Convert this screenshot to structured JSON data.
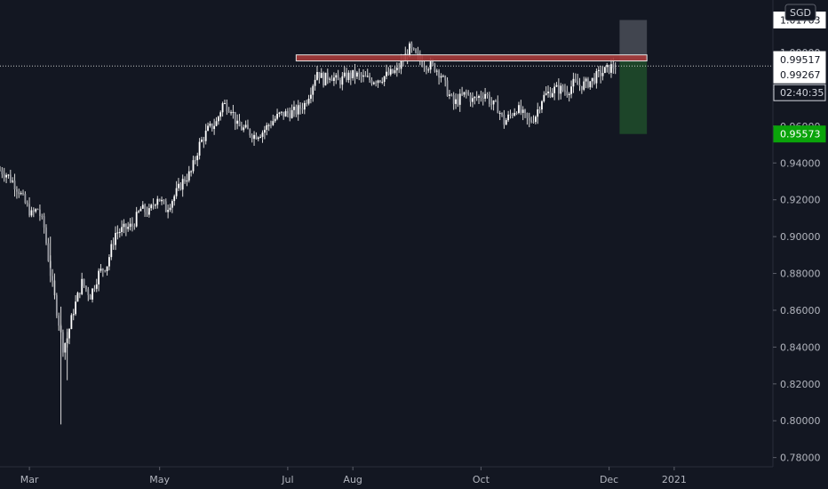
{
  "chart_data": {
    "type": "candlestick",
    "currency": "SGD",
    "ylim": [
      0.775,
      1.0285
    ],
    "y_ticks": [
      "0.78000",
      "0.80000",
      "0.82000",
      "0.84000",
      "0.86000",
      "0.88000",
      "0.90000",
      "0.92000",
      "0.94000",
      "0.96000",
      "0.98000",
      "1.00000"
    ],
    "x_ticks": [
      "Mar",
      "May",
      "Jul",
      "Aug",
      "Oct",
      "Dec",
      "2021"
    ],
    "x_tick_days": [
      59,
      121,
      182,
      213,
      274,
      335,
      366
    ],
    "xlim": [
      45,
      413
    ],
    "grid": false,
    "close_series": [
      [
        45,
        0.936
      ],
      [
        48,
        0.934
      ],
      [
        51,
        0.93
      ],
      [
        54,
        0.925
      ],
      [
        57,
        0.918
      ],
      [
        60,
        0.912
      ],
      [
        63,
        0.915
      ],
      [
        66,
        0.905
      ],
      [
        69,
        0.88
      ],
      [
        72,
        0.86
      ],
      [
        75,
        0.84
      ],
      [
        77,
        0.845
      ],
      [
        80,
        0.86
      ],
      [
        84,
        0.875
      ],
      [
        88,
        0.868
      ],
      [
        92,
        0.88
      ],
      [
        96,
        0.885
      ],
      [
        100,
        0.902
      ],
      [
        104,
        0.904
      ],
      [
        108,
        0.906
      ],
      [
        112,
        0.915
      ],
      [
        116,
        0.913
      ],
      [
        120,
        0.922
      ],
      [
        124,
        0.915
      ],
      [
        128,
        0.922
      ],
      [
        132,
        0.93
      ],
      [
        136,
        0.935
      ],
      [
        140,
        0.95
      ],
      [
        144,
        0.958
      ],
      [
        148,
        0.962
      ],
      [
        151,
        0.972
      ],
      [
        155,
        0.97
      ],
      [
        158,
        0.96
      ],
      [
        162,
        0.958
      ],
      [
        166,
        0.955
      ],
      [
        170,
        0.957
      ],
      [
        174,
        0.962
      ],
      [
        178,
        0.966
      ],
      [
        182,
        0.967
      ],
      [
        186,
        0.968
      ],
      [
        190,
        0.972
      ],
      [
        193,
        0.98
      ],
      [
        196,
        0.99
      ],
      [
        199,
        0.985
      ],
      [
        202,
        0.988
      ],
      [
        206,
        0.984
      ],
      [
        210,
        0.987
      ],
      [
        214,
        0.988
      ],
      [
        218,
        0.986
      ],
      [
        222,
        0.985
      ],
      [
        226,
        0.986
      ],
      [
        230,
        0.988
      ],
      [
        234,
        0.99
      ],
      [
        237,
        0.996
      ],
      [
        240,
        1.002
      ],
      [
        243,
        0.998
      ],
      [
        246,
        0.995
      ],
      [
        249,
        0.993
      ],
      [
        252,
        0.992
      ],
      [
        255,
        0.988
      ],
      [
        258,
        0.979
      ],
      [
        261,
        0.972
      ],
      [
        264,
        0.975
      ],
      [
        267,
        0.978
      ],
      [
        270,
        0.974
      ],
      [
        273,
        0.976
      ],
      [
        276,
        0.978
      ],
      [
        279,
        0.972
      ],
      [
        282,
        0.97
      ],
      [
        285,
        0.962
      ],
      [
        288,
        0.966
      ],
      [
        291,
        0.97
      ],
      [
        294,
        0.966
      ],
      [
        297,
        0.962
      ],
      [
        300,
        0.966
      ],
      [
        303,
        0.975
      ],
      [
        306,
        0.978
      ],
      [
        309,
        0.98
      ],
      [
        312,
        0.98
      ],
      [
        315,
        0.979
      ],
      [
        318,
        0.983
      ],
      [
        321,
        0.982
      ],
      [
        324,
        0.983
      ],
      [
        327,
        0.985
      ],
      [
        330,
        0.988
      ],
      [
        333,
        0.99
      ],
      [
        336,
        0.992
      ],
      [
        338,
        0.9927
      ]
    ],
    "spikes": [
      {
        "day": 69,
        "low": 0.883,
        "high": 0.9
      },
      {
        "day": 71,
        "low": 0.866,
        "high": 0.88
      },
      {
        "day": 74,
        "low": 0.798,
        "high": 0.862
      },
      {
        "day": 77,
        "low": 0.822,
        "high": 0.85
      }
    ],
    "horizontal_zone": {
      "day_start": 186,
      "day_end": 353,
      "top": 0.9987,
      "bottom": 0.9954
    },
    "position_box": {
      "day_start": 340,
      "day_end": 353,
      "entry": 0.99517,
      "target": 0.95573,
      "stop": 1.01763
    },
    "labels": {
      "stop": "1.01763",
      "entry": "0.99517",
      "current": "0.99267",
      "countdown": "02:40:35",
      "target": "0.95573"
    },
    "colors": {
      "background": "#131722",
      "candle": "#ffffff",
      "zone_fill": "#a63a3a",
      "zone_border": "#e6e6e6",
      "target_box": "#1f4a2a",
      "stop_box": "#4a4d57",
      "target_label": "#0aa40a"
    }
  }
}
